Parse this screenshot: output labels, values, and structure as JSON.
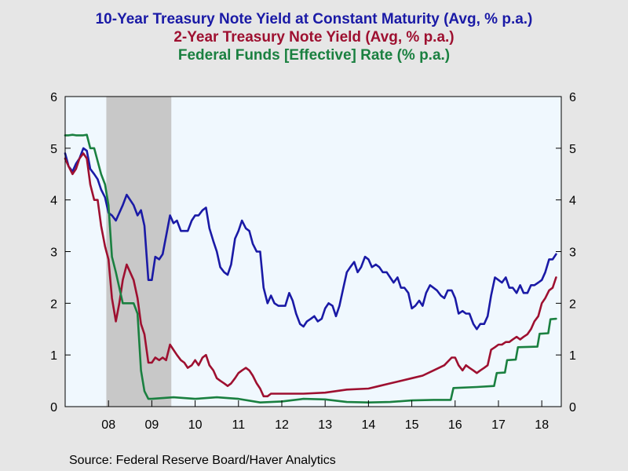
{
  "chart_data": {
    "type": "line",
    "title_lines": [
      "10-Year Treasury Note Yield at Constant Maturity (Avg, % p.a.)",
      "2-Year Treasury Note Yield (Avg, % p.a.)",
      "Federal Funds [Effective] Rate (% p.a.)"
    ],
    "title_colors": [
      "#1a1aa6",
      "#9e1030",
      "#1a8040"
    ],
    "source": "Source:  Federal Reserve Board/Haver Analytics",
    "xlim": [
      2007.0,
      2018.45
    ],
    "ylim": [
      0,
      6
    ],
    "yticks": [
      0,
      1,
      2,
      3,
      4,
      5,
      6
    ],
    "xtick_labels": [
      "08",
      "09",
      "10",
      "11",
      "12",
      "13",
      "14",
      "15",
      "16",
      "17",
      "18"
    ],
    "xtick_positions": [
      2008,
      2009,
      2010,
      2011,
      2012,
      2013,
      2014,
      2015,
      2016,
      2017,
      2018
    ],
    "recession": [
      2007.95,
      2009.45
    ],
    "recession_color": "#c8c8c8",
    "plot_bg": "#f0f8fe",
    "series": [
      {
        "color": "#1a1aa6",
        "x": [
          2007.0,
          2007.08,
          2007.17,
          2007.25,
          2007.33,
          2007.42,
          2007.5,
          2007.58,
          2007.67,
          2007.75,
          2007.83,
          2007.92,
          2008.0,
          2008.08,
          2008.17,
          2008.25,
          2008.33,
          2008.42,
          2008.5,
          2008.58,
          2008.67,
          2008.75,
          2008.83,
          2008.92,
          2009.0,
          2009.08,
          2009.17,
          2009.25,
          2009.33,
          2009.42,
          2009.5,
          2009.58,
          2009.67,
          2009.75,
          2009.83,
          2009.92,
          2010.0,
          2010.08,
          2010.17,
          2010.25,
          2010.33,
          2010.42,
          2010.5,
          2010.58,
          2010.67,
          2010.75,
          2010.83,
          2010.92,
          2011.0,
          2011.08,
          2011.17,
          2011.25,
          2011.33,
          2011.42,
          2011.5,
          2011.58,
          2011.67,
          2011.75,
          2011.83,
          2011.92,
          2012.0,
          2012.08,
          2012.17,
          2012.25,
          2012.33,
          2012.42,
          2012.5,
          2012.58,
          2012.67,
          2012.75,
          2012.83,
          2012.92,
          2013.0,
          2013.08,
          2013.17,
          2013.25,
          2013.33,
          2013.42,
          2013.5,
          2013.58,
          2013.67,
          2013.75,
          2013.83,
          2013.92,
          2014.0,
          2014.08,
          2014.17,
          2014.25,
          2014.33,
          2014.42,
          2014.5,
          2014.58,
          2014.67,
          2014.75,
          2014.83,
          2014.92,
          2015.0,
          2015.08,
          2015.17,
          2015.25,
          2015.33,
          2015.42,
          2015.5,
          2015.58,
          2015.67,
          2015.75,
          2015.83,
          2015.92,
          2016.0,
          2016.08,
          2016.17,
          2016.25,
          2016.33,
          2016.42,
          2016.5,
          2016.58,
          2016.67,
          2016.75,
          2016.83,
          2016.92,
          2017.0,
          2017.08,
          2017.17,
          2017.25,
          2017.33,
          2017.42,
          2017.5,
          2017.58,
          2017.67,
          2017.75,
          2017.83,
          2017.92,
          2018.0,
          2018.08,
          2018.17,
          2018.25,
          2018.33
        ],
        "y": [
          4.9,
          4.65,
          4.55,
          4.7,
          4.8,
          5.0,
          4.95,
          4.6,
          4.5,
          4.4,
          4.2,
          4.05,
          3.75,
          3.7,
          3.6,
          3.75,
          3.9,
          4.1,
          4.0,
          3.9,
          3.7,
          3.8,
          3.5,
          2.45,
          2.45,
          2.9,
          2.85,
          2.95,
          3.3,
          3.7,
          3.55,
          3.6,
          3.4,
          3.4,
          3.4,
          3.6,
          3.7,
          3.7,
          3.8,
          3.85,
          3.45,
          3.2,
          3.0,
          2.7,
          2.6,
          2.55,
          2.75,
          3.25,
          3.4,
          3.6,
          3.45,
          3.4,
          3.15,
          3.0,
          3.0,
          2.3,
          2.0,
          2.15,
          2.0,
          1.95,
          1.95,
          1.95,
          2.2,
          2.05,
          1.8,
          1.6,
          1.55,
          1.65,
          1.7,
          1.75,
          1.65,
          1.7,
          1.9,
          2.0,
          1.95,
          1.75,
          1.95,
          2.3,
          2.6,
          2.7,
          2.8,
          2.6,
          2.7,
          2.9,
          2.85,
          2.7,
          2.75,
          2.7,
          2.6,
          2.6,
          2.5,
          2.4,
          2.5,
          2.3,
          2.3,
          2.2,
          1.9,
          1.95,
          2.05,
          1.95,
          2.2,
          2.35,
          2.3,
          2.25,
          2.15,
          2.1,
          2.25,
          2.25,
          2.1,
          1.8,
          1.85,
          1.8,
          1.8,
          1.6,
          1.5,
          1.6,
          1.6,
          1.75,
          2.15,
          2.5,
          2.45,
          2.4,
          2.5,
          2.3,
          2.3,
          2.2,
          2.35,
          2.2,
          2.2,
          2.35,
          2.35,
          2.4,
          2.45,
          2.6,
          2.85,
          2.85,
          2.95
        ]
      },
      {
        "color": "#9e1030",
        "x": [
          2007.0,
          2007.08,
          2007.17,
          2007.25,
          2007.33,
          2007.42,
          2007.5,
          2007.58,
          2007.67,
          2007.75,
          2007.83,
          2007.92,
          2008.0,
          2008.08,
          2008.17,
          2008.25,
          2008.33,
          2008.42,
          2008.5,
          2008.58,
          2008.67,
          2008.75,
          2008.83,
          2008.92,
          2009.0,
          2009.08,
          2009.17,
          2009.25,
          2009.33,
          2009.42,
          2009.5,
          2009.58,
          2009.67,
          2009.75,
          2009.83,
          2009.92,
          2010.0,
          2010.08,
          2010.17,
          2010.25,
          2010.33,
          2010.42,
          2010.5,
          2010.58,
          2010.67,
          2010.75,
          2010.83,
          2010.92,
          2011.0,
          2011.08,
          2011.17,
          2011.25,
          2011.33,
          2011.42,
          2011.5,
          2011.58,
          2011.67,
          2011.75,
          2011.83,
          2011.92,
          2012.0,
          2012.5,
          2013.0,
          2013.5,
          2014.0,
          2014.25,
          2014.5,
          2014.75,
          2015.0,
          2015.25,
          2015.5,
          2015.75,
          2015.92,
          2016.0,
          2016.08,
          2016.17,
          2016.25,
          2016.33,
          2016.42,
          2016.5,
          2016.58,
          2016.67,
          2016.75,
          2016.83,
          2016.92,
          2017.0,
          2017.08,
          2017.17,
          2017.25,
          2017.33,
          2017.42,
          2017.5,
          2017.58,
          2017.67,
          2017.75,
          2017.83,
          2017.92,
          2018.0,
          2018.08,
          2018.17,
          2018.25,
          2018.33
        ],
        "y": [
          4.8,
          4.65,
          4.5,
          4.6,
          4.8,
          4.9,
          4.8,
          4.3,
          4.0,
          4.0,
          3.5,
          3.1,
          2.85,
          2.1,
          1.65,
          2.0,
          2.45,
          2.75,
          2.6,
          2.45,
          2.1,
          1.6,
          1.4,
          0.85,
          0.85,
          0.95,
          0.9,
          0.95,
          0.9,
          1.2,
          1.1,
          1.0,
          0.9,
          0.85,
          0.75,
          0.8,
          0.9,
          0.8,
          0.95,
          1.0,
          0.8,
          0.7,
          0.55,
          0.5,
          0.45,
          0.4,
          0.45,
          0.55,
          0.65,
          0.7,
          0.75,
          0.7,
          0.6,
          0.45,
          0.35,
          0.2,
          0.2,
          0.25,
          0.25,
          0.25,
          0.25,
          0.25,
          0.27,
          0.33,
          0.35,
          0.4,
          0.45,
          0.5,
          0.55,
          0.6,
          0.7,
          0.8,
          0.95,
          0.95,
          0.8,
          0.7,
          0.8,
          0.75,
          0.7,
          0.65,
          0.7,
          0.75,
          0.8,
          1.1,
          1.15,
          1.2,
          1.2,
          1.25,
          1.25,
          1.3,
          1.35,
          1.3,
          1.35,
          1.4,
          1.5,
          1.65,
          1.75,
          2.0,
          2.1,
          2.25,
          2.3,
          2.5
        ]
      },
      {
        "color": "#1a8040",
        "x": [
          2007.0,
          2007.08,
          2007.17,
          2007.25,
          2007.33,
          2007.42,
          2007.5,
          2007.58,
          2007.67,
          2007.75,
          2007.83,
          2007.92,
          2008.0,
          2008.08,
          2008.17,
          2008.25,
          2008.33,
          2008.42,
          2008.5,
          2008.58,
          2008.67,
          2008.75,
          2008.83,
          2008.92,
          2009.0,
          2009.5,
          2010.0,
          2010.5,
          2011.0,
          2011.5,
          2012.0,
          2012.5,
          2013.0,
          2013.5,
          2014.0,
          2014.5,
          2015.0,
          2015.5,
          2015.9,
          2015.96,
          2016.5,
          2016.9,
          2016.96,
          2017.15,
          2017.2,
          2017.4,
          2017.45,
          2017.9,
          2017.95,
          2018.15,
          2018.2,
          2018.33
        ],
        "y": [
          5.25,
          5.25,
          5.26,
          5.25,
          5.25,
          5.25,
          5.26,
          5.0,
          5.0,
          4.75,
          4.5,
          4.3,
          3.9,
          2.9,
          2.6,
          2.3,
          2.0,
          2.0,
          2.0,
          2.0,
          1.8,
          0.7,
          0.3,
          0.15,
          0.15,
          0.18,
          0.15,
          0.18,
          0.15,
          0.08,
          0.1,
          0.15,
          0.14,
          0.09,
          0.08,
          0.09,
          0.12,
          0.13,
          0.13,
          0.36,
          0.38,
          0.4,
          0.65,
          0.66,
          0.9,
          0.91,
          1.15,
          1.16,
          1.41,
          1.42,
          1.69,
          1.7
        ]
      }
    ]
  }
}
